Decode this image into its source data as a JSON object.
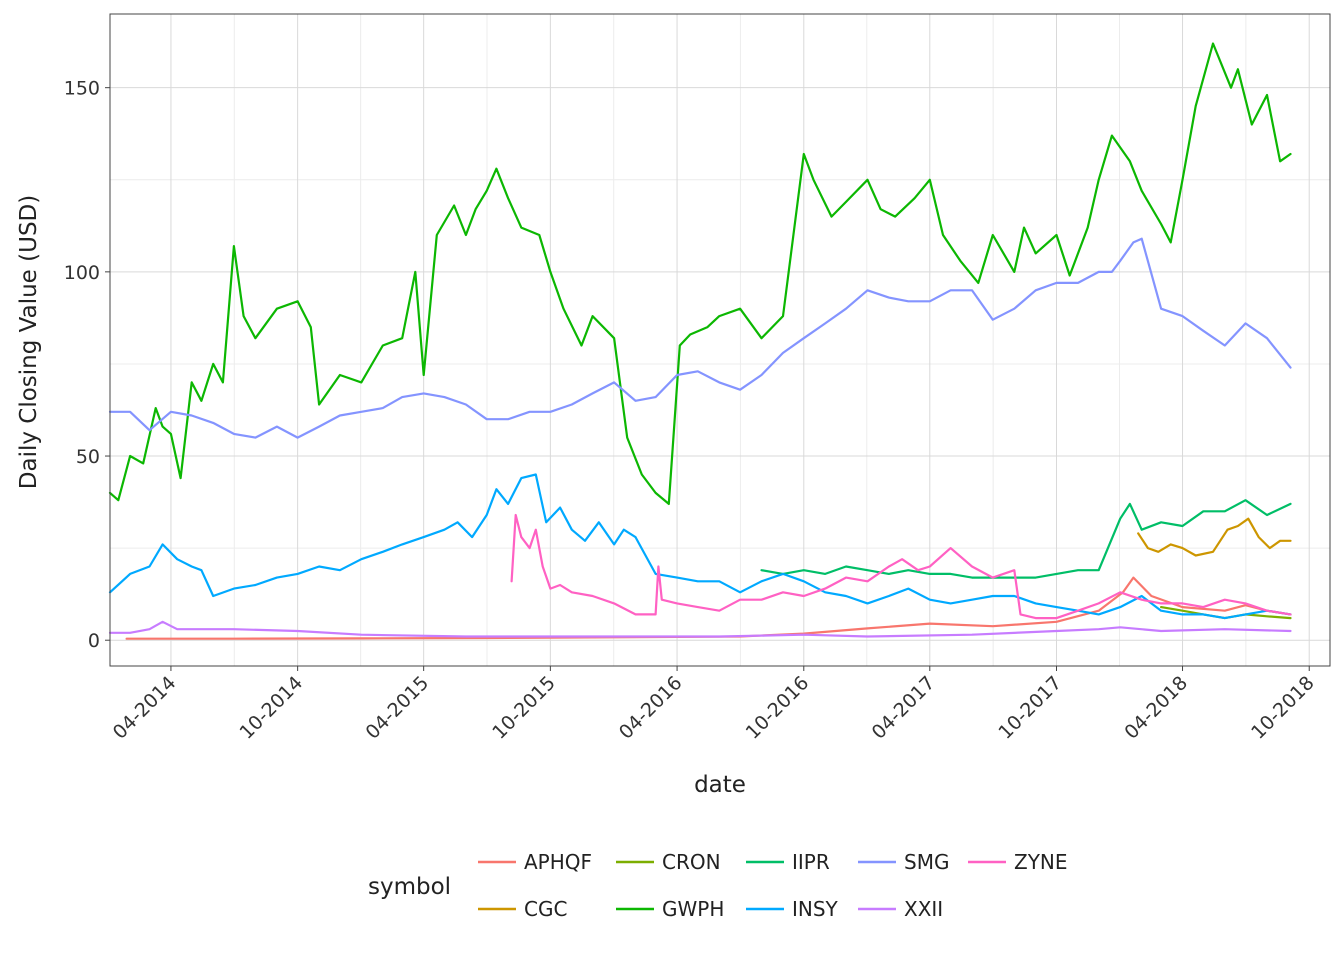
{
  "chart_data": {
    "type": "line",
    "xlabel": "date",
    "ylabel": "Daily Closing Value (USD)",
    "xlim": [
      "2014-01-03",
      "2018-10-31"
    ],
    "ylim": [
      -7,
      170
    ],
    "y_ticks": [
      0,
      50,
      100,
      150
    ],
    "x_ticks": [
      {
        "date": "2014-04-01",
        "label": "04-2014"
      },
      {
        "date": "2014-10-01",
        "label": "10-2014"
      },
      {
        "date": "2015-04-01",
        "label": "04-2015"
      },
      {
        "date": "2015-10-01",
        "label": "10-2015"
      },
      {
        "date": "2016-04-01",
        "label": "04-2016"
      },
      {
        "date": "2016-10-01",
        "label": "10-2016"
      },
      {
        "date": "2017-04-01",
        "label": "04-2017"
      },
      {
        "date": "2017-10-01",
        "label": "10-2017"
      },
      {
        "date": "2018-04-01",
        "label": "04-2018"
      },
      {
        "date": "2018-10-01",
        "label": "10-2018"
      }
    ],
    "grid": true,
    "legend": {
      "title": "symbol",
      "position": "bottom"
    },
    "series": [
      {
        "name": "APHQF",
        "color": "#F8766D",
        "x": [
          "2014-01-27",
          "2014-07-01",
          "2015-01-01",
          "2015-07-01",
          "2016-01-01",
          "2016-07-01",
          "2016-10-01",
          "2017-01-01",
          "2017-04-01",
          "2017-07-01",
          "2017-10-01",
          "2017-12-01",
          "2018-01-05",
          "2018-01-20",
          "2018-02-15",
          "2018-04-01",
          "2018-06-01",
          "2018-07-01",
          "2018-08-01",
          "2018-09-04"
        ],
        "y": [
          0.4,
          0.4,
          0.5,
          0.6,
          0.8,
          1.0,
          1.8,
          3.2,
          4.5,
          3.8,
          5.0,
          8.0,
          13.0,
          17.0,
          12.0,
          9.0,
          8.0,
          9.5,
          8.0,
          7.0
        ]
      },
      {
        "name": "CGC",
        "color": "#CD9600",
        "x": [
          "2018-01-27",
          "2018-02-10",
          "2018-02-25",
          "2018-03-15",
          "2018-04-01",
          "2018-04-20",
          "2018-05-15",
          "2018-06-05",
          "2018-06-20",
          "2018-07-05",
          "2018-07-20",
          "2018-08-05",
          "2018-08-20",
          "2018-09-04"
        ],
        "y": [
          29,
          25,
          24,
          26,
          25,
          23,
          24,
          30,
          31,
          33,
          28,
          25,
          27,
          27
        ]
      },
      {
        "name": "CRON",
        "color": "#7CAE00",
        "x": [
          "2018-03-01",
          "2018-04-01",
          "2018-05-01",
          "2018-06-01",
          "2018-07-01",
          "2018-08-01",
          "2018-09-04"
        ],
        "y": [
          9,
          8,
          7,
          6,
          7,
          6.5,
          6
        ]
      },
      {
        "name": "GWPH",
        "color": "#0CB702",
        "x": [
          "2014-01-03",
          "2014-01-15",
          "2014-02-01",
          "2014-02-20",
          "2014-03-10",
          "2014-03-20",
          "2014-04-01",
          "2014-04-15",
          "2014-05-01",
          "2014-05-15",
          "2014-06-01",
          "2014-06-15",
          "2014-07-01",
          "2014-07-15",
          "2014-08-01",
          "2014-09-01",
          "2014-10-01",
          "2014-10-20",
          "2014-11-01",
          "2014-12-01",
          "2015-01-01",
          "2015-02-01",
          "2015-03-01",
          "2015-03-20",
          "2015-04-01",
          "2015-04-20",
          "2015-05-15",
          "2015-06-01",
          "2015-06-15",
          "2015-07-01",
          "2015-07-15",
          "2015-08-01",
          "2015-08-20",
          "2015-09-15",
          "2015-10-01",
          "2015-10-20",
          "2015-11-15",
          "2015-12-01",
          "2016-01-01",
          "2016-01-20",
          "2016-02-10",
          "2016-03-01",
          "2016-03-20",
          "2016-04-05",
          "2016-04-20",
          "2016-05-15",
          "2016-06-01",
          "2016-07-01",
          "2016-08-01",
          "2016-09-01",
          "2016-10-01",
          "2016-10-15",
          "2016-11-10",
          "2016-12-01",
          "2017-01-01",
          "2017-01-20",
          "2017-02-10",
          "2017-03-10",
          "2017-04-01",
          "2017-04-20",
          "2017-05-15",
          "2017-06-10",
          "2017-07-01",
          "2017-08-01",
          "2017-08-15",
          "2017-09-01",
          "2017-10-01",
          "2017-10-20",
          "2017-11-15",
          "2017-12-01",
          "2017-12-20",
          "2018-01-15",
          "2018-02-01",
          "2018-03-01",
          "2018-03-15",
          "2018-04-01",
          "2018-04-20",
          "2018-05-15",
          "2018-06-10",
          "2018-06-20",
          "2018-07-10",
          "2018-08-01",
          "2018-08-20",
          "2018-09-04"
        ],
        "y": [
          40,
          38,
          50,
          48,
          63,
          58,
          56,
          44,
          70,
          65,
          75,
          70,
          107,
          88,
          82,
          90,
          92,
          85,
          64,
          72,
          70,
          80,
          82,
          100,
          72,
          110,
          118,
          110,
          117,
          122,
          128,
          120,
          112,
          110,
          100,
          90,
          80,
          88,
          82,
          55,
          45,
          40,
          37,
          80,
          83,
          85,
          88,
          90,
          82,
          88,
          132,
          125,
          115,
          119,
          125,
          117,
          115,
          120,
          125,
          110,
          103,
          97,
          110,
          100,
          112,
          105,
          110,
          99,
          112,
          125,
          137,
          130,
          122,
          113,
          108,
          125,
          145,
          162,
          150,
          155,
          140,
          148,
          130,
          132
        ]
      },
      {
        "name": "IIPR",
        "color": "#00BE67",
        "x": [
          "2016-08-01",
          "2016-09-01",
          "2016-10-01",
          "2016-11-01",
          "2016-12-01",
          "2017-01-01",
          "2017-02-01",
          "2017-03-01",
          "2017-04-01",
          "2017-05-01",
          "2017-06-01",
          "2017-07-01",
          "2017-08-01",
          "2017-09-01",
          "2017-10-01",
          "2017-11-01",
          "2017-12-01",
          "2018-01-01",
          "2018-01-15",
          "2018-02-01",
          "2018-03-01",
          "2018-04-01",
          "2018-05-01",
          "2018-06-01",
          "2018-07-01",
          "2018-08-01",
          "2018-09-04"
        ],
        "y": [
          19,
          18,
          19,
          18,
          20,
          19,
          18,
          19,
          18,
          18,
          17,
          17,
          17,
          17,
          18,
          19,
          19,
          33,
          37,
          30,
          32,
          31,
          35,
          35,
          38,
          34,
          37
        ]
      },
      {
        "name": "INSY",
        "color": "#00A9FF",
        "x": [
          "2014-01-03",
          "2014-02-01",
          "2014-03-01",
          "2014-03-20",
          "2014-04-10",
          "2014-05-01",
          "2014-05-15",
          "2014-06-01",
          "2014-07-01",
          "2014-08-01",
          "2014-09-01",
          "2014-10-01",
          "2014-11-01",
          "2014-12-01",
          "2015-01-01",
          "2015-02-01",
          "2015-03-01",
          "2015-04-01",
          "2015-05-01",
          "2015-05-20",
          "2015-06-10",
          "2015-07-01",
          "2015-07-15",
          "2015-08-01",
          "2015-08-20",
          "2015-09-10",
          "2015-09-25",
          "2015-10-15",
          "2015-11-01",
          "2015-11-20",
          "2015-12-10",
          "2016-01-01",
          "2016-01-15",
          "2016-02-01",
          "2016-03-01",
          "2016-04-01",
          "2016-05-01",
          "2016-06-01",
          "2016-07-01",
          "2016-08-01",
          "2016-09-01",
          "2016-10-01",
          "2016-11-01",
          "2016-12-01",
          "2017-01-01",
          "2017-02-01",
          "2017-03-01",
          "2017-04-01",
          "2017-05-01",
          "2017-06-01",
          "2017-07-01",
          "2017-08-01",
          "2017-09-01",
          "2017-10-01",
          "2017-11-01",
          "2017-12-01",
          "2018-01-01",
          "2018-02-01",
          "2018-03-01",
          "2018-04-01",
          "2018-05-01",
          "2018-06-01",
          "2018-07-01",
          "2018-08-01",
          "2018-09-04"
        ],
        "y": [
          13,
          18,
          20,
          26,
          22,
          20,
          19,
          12,
          14,
          15,
          17,
          18,
          20,
          19,
          22,
          24,
          26,
          28,
          30,
          32,
          28,
          34,
          41,
          37,
          44,
          45,
          32,
          36,
          30,
          27,
          32,
          26,
          30,
          28,
          18,
          17,
          16,
          16,
          13,
          16,
          18,
          16,
          13,
          12,
          10,
          12,
          14,
          11,
          10,
          11,
          12,
          12,
          10,
          9,
          8,
          7,
          9,
          12,
          8,
          7,
          7,
          6,
          7,
          8,
          7
        ]
      },
      {
        "name": "SMG",
        "color": "#8494FF",
        "x": [
          "2014-01-03",
          "2014-02-01",
          "2014-03-01",
          "2014-04-01",
          "2014-05-01",
          "2014-06-01",
          "2014-07-01",
          "2014-08-01",
          "2014-09-01",
          "2014-10-01",
          "2014-11-01",
          "2014-12-01",
          "2015-01-01",
          "2015-02-01",
          "2015-03-01",
          "2015-04-01",
          "2015-05-01",
          "2015-06-01",
          "2015-07-01",
          "2015-08-01",
          "2015-09-01",
          "2015-10-01",
          "2015-11-01",
          "2015-12-01",
          "2016-01-01",
          "2016-02-01",
          "2016-03-01",
          "2016-04-01",
          "2016-05-01",
          "2016-06-01",
          "2016-07-01",
          "2016-08-01",
          "2016-09-01",
          "2016-10-01",
          "2016-11-01",
          "2016-12-01",
          "2017-01-01",
          "2017-02-01",
          "2017-03-01",
          "2017-04-01",
          "2017-05-01",
          "2017-06-01",
          "2017-07-01",
          "2017-08-01",
          "2017-09-01",
          "2017-10-01",
          "2017-11-01",
          "2017-12-01",
          "2017-12-20",
          "2018-01-01",
          "2018-01-20",
          "2018-02-01",
          "2018-03-01",
          "2018-04-01",
          "2018-05-01",
          "2018-06-01",
          "2018-07-01",
          "2018-08-01",
          "2018-09-04"
        ],
        "y": [
          62,
          62,
          57,
          62,
          61,
          59,
          56,
          55,
          58,
          55,
          58,
          61,
          62,
          63,
          66,
          67,
          66,
          64,
          60,
          60,
          62,
          62,
          64,
          67,
          70,
          65,
          66,
          72,
          73,
          70,
          68,
          72,
          78,
          82,
          86,
          90,
          95,
          93,
          92,
          92,
          95,
          95,
          87,
          90,
          95,
          97,
          97,
          100,
          100,
          103,
          108,
          109,
          90,
          88,
          84,
          80,
          86,
          82,
          74
        ]
      },
      {
        "name": "XXII",
        "color": "#C77CFF",
        "x": [
          "2014-01-03",
          "2014-02-01",
          "2014-03-01",
          "2014-03-20",
          "2014-04-10",
          "2014-05-01",
          "2014-07-01",
          "2014-10-01",
          "2015-01-01",
          "2015-06-01",
          "2015-10-01",
          "2016-01-01",
          "2016-06-01",
          "2016-10-01",
          "2017-01-01",
          "2017-06-01",
          "2017-10-01",
          "2017-12-01",
          "2018-01-01",
          "2018-03-01",
          "2018-06-01",
          "2018-09-04"
        ],
        "y": [
          2,
          2,
          3,
          5,
          3,
          3,
          3,
          2.5,
          1.5,
          1.0,
          1.0,
          1.0,
          1.0,
          1.5,
          1.0,
          1.5,
          2.5,
          3.0,
          3.5,
          2.5,
          3.0,
          2.5
        ]
      },
      {
        "name": "ZYNE",
        "color": "#FF61C3",
        "x": [
          "2015-08-06",
          "2015-08-12",
          "2015-08-20",
          "2015-09-01",
          "2015-09-10",
          "2015-09-20",
          "2015-10-01",
          "2015-10-15",
          "2015-11-01",
          "2015-12-01",
          "2016-01-01",
          "2016-02-01",
          "2016-03-01",
          "2016-03-05",
          "2016-03-10",
          "2016-04-01",
          "2016-05-01",
          "2016-06-01",
          "2016-07-01",
          "2016-08-01",
          "2016-09-01",
          "2016-10-01",
          "2016-11-01",
          "2016-12-01",
          "2017-01-01",
          "2017-02-01",
          "2017-02-20",
          "2017-03-15",
          "2017-04-01",
          "2017-05-01",
          "2017-06-01",
          "2017-07-01",
          "2017-08-01",
          "2017-08-10",
          "2017-09-01",
          "2017-10-01",
          "2017-11-01",
          "2017-12-01",
          "2018-01-01",
          "2018-02-01",
          "2018-03-01",
          "2018-04-01",
          "2018-05-01",
          "2018-06-01",
          "2018-07-01",
          "2018-08-01",
          "2018-09-04"
        ],
        "y": [
          16,
          34,
          28,
          25,
          30,
          20,
          14,
          15,
          13,
          12,
          10,
          7,
          7,
          20,
          11,
          10,
          9,
          8,
          11,
          11,
          13,
          12,
          14,
          17,
          16,
          20,
          22,
          19,
          20,
          25,
          20,
          17,
          19,
          7,
          6,
          6,
          8,
          10,
          13,
          11,
          10,
          10,
          9,
          11,
          10,
          8,
          7
        ]
      }
    ]
  }
}
